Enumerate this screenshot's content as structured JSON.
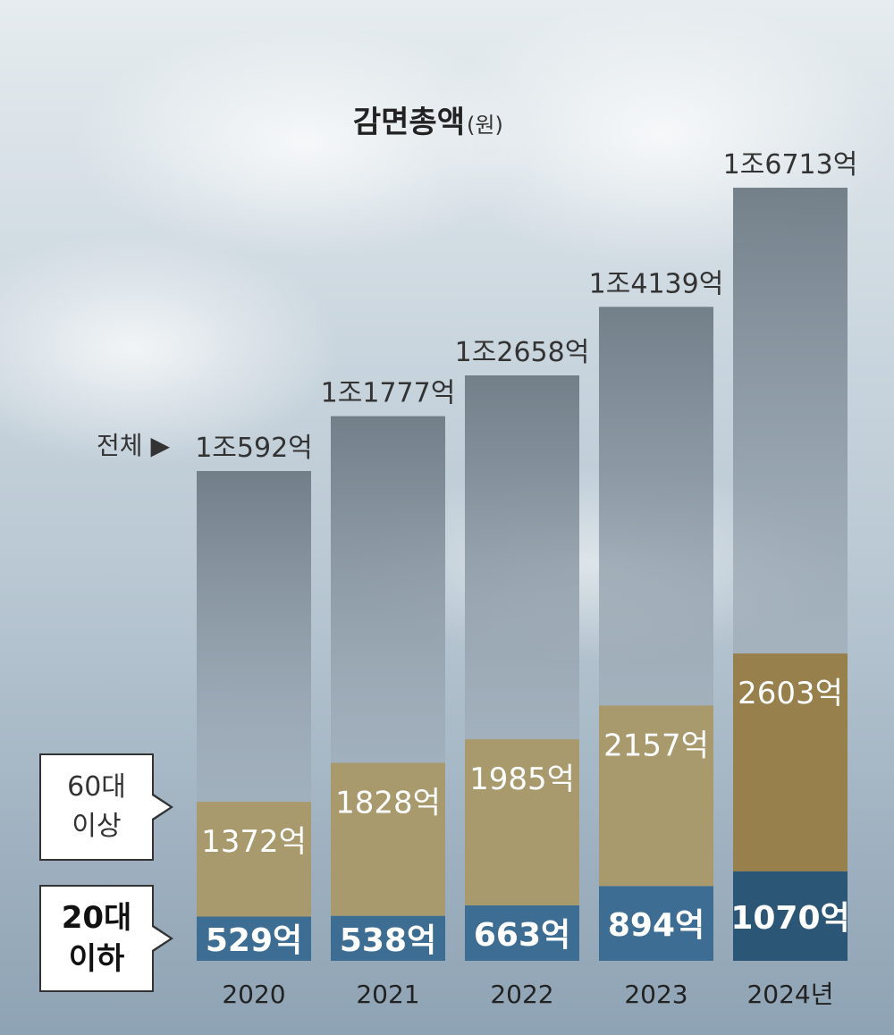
{
  "chart_data": {
    "type": "bar",
    "title": "감면총액",
    "title_unit": "(원)",
    "total_label": "전체 ▶",
    "categories": [
      "2020",
      "2021",
      "2022",
      "2023",
      "2024년"
    ],
    "series": [
      {
        "name": "전체",
        "values": [
          10592,
          11777,
          12658,
          14139,
          16713
        ],
        "labels": [
          "1조592억",
          "1조1777억",
          "1조2658억",
          "1조4139억",
          "1조6713억"
        ]
      },
      {
        "name": "60대 이상",
        "values": [
          1372,
          1828,
          1985,
          2157,
          2603
        ],
        "labels": [
          "1372억",
          "1828억",
          "1985억",
          "2157억",
          "2603억"
        ]
      },
      {
        "name": "20대 이하",
        "values": [
          529,
          538,
          663,
          894,
          1070
        ],
        "labels": [
          "529억",
          "538억",
          "663억",
          "894억",
          "1070억"
        ]
      }
    ],
    "legend": {
      "sixties": "60대\n이상",
      "twenties": "20대\n이하"
    },
    "colors": {
      "total": "#7d8b96",
      "sixties": "#a89a6c",
      "sixties_2024": "#98804d",
      "twenties": "#3e6d93",
      "twenties_2024": "#2c5676"
    }
  }
}
